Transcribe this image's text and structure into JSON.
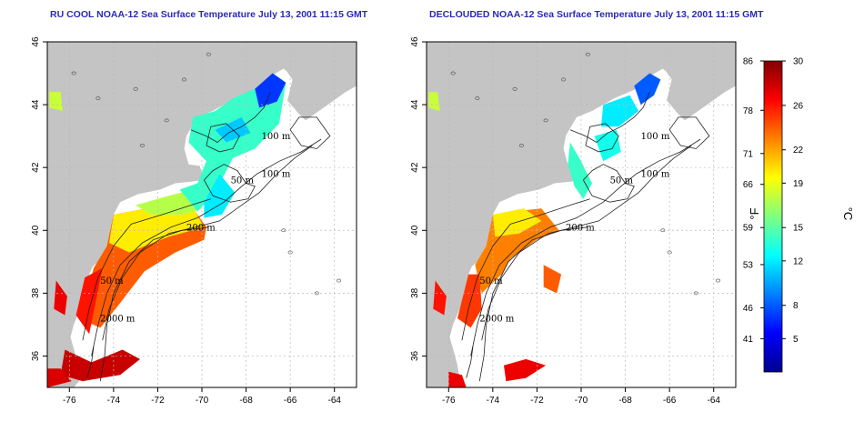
{
  "maps": {
    "left": {
      "title": "RU COOL NOAA-12 Sea Surface Temperature July 13, 2001 11:15 GMT"
    },
    "right": {
      "title": "DECLOUDED NOAA-12 Sea Surface Temperature July 13, 2001 11:15 GMT"
    }
  },
  "axes": {
    "lon_ticks": [
      "-76",
      "-74",
      "-72",
      "-70",
      "-68",
      "-66",
      "-64"
    ],
    "lat_ticks": [
      "36",
      "38",
      "40",
      "42",
      "44",
      "46"
    ],
    "lon_range": [
      -77,
      -63
    ],
    "lat_range": [
      35,
      46
    ],
    "grid": "dotted"
  },
  "contours": {
    "labels": [
      "100 m",
      "100 m",
      "50 m",
      "200 m",
      "50 m",
      "2000 m"
    ]
  },
  "colorbar": {
    "fahrenheit_ticks": [
      "86",
      "78",
      "71",
      "66",
      "59",
      "53",
      "46",
      "41"
    ],
    "celsius_ticks": [
      "30",
      "26",
      "22",
      "19",
      "15",
      "12",
      "8",
      "5"
    ],
    "fahrenheit_unit": "°F",
    "celsius_unit": "°C",
    "celsius_range": [
      2,
      30
    ],
    "colors": [
      "#00008f",
      "#0000ff",
      "#0080ff",
      "#00ffff",
      "#80ff80",
      "#ffff00",
      "#ff8000",
      "#ff0000",
      "#800000"
    ]
  },
  "colors": {
    "land": "#c4c4c4",
    "title": "#2a2ab4"
  }
}
